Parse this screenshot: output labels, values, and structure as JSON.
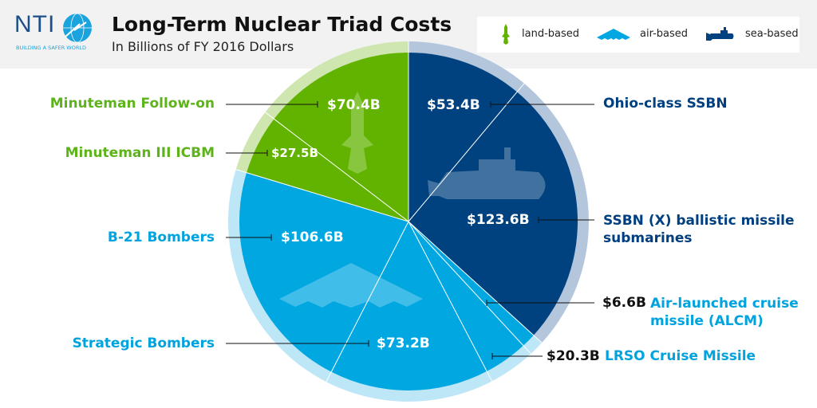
{
  "logo": {
    "text": "NTI",
    "tagline": "BUILDING A SAFER WORLD"
  },
  "header": {
    "title": "Long-Term Nuclear Triad Costs",
    "subtitle": "In Billions of FY 2016 Dollars"
  },
  "legend": [
    {
      "label": "land-based",
      "icon": "missile-icon",
      "color": "#62b300"
    },
    {
      "label": "air-based",
      "icon": "bomber-icon",
      "color": "#00a7e1"
    },
    {
      "label": "sea-based",
      "icon": "submarine-icon",
      "color": "#00427f"
    }
  ],
  "colors": {
    "land": "#62b300",
    "air": "#00a7e1",
    "sea": "#00427f",
    "land_ring": "#cfe6b0",
    "air_ring": "#bde6f7",
    "sea_ring": "#b3c6dc"
  },
  "chart_data": {
    "type": "pie",
    "title": "Long-Term Nuclear Triad Costs",
    "subtitle": "In Billions of FY 2016 Dollars",
    "start": "12 o'clock, clockwise",
    "slices": [
      {
        "label": "Ohio-class SSBN",
        "value": 53.4,
        "value_label": "$53.4B",
        "group": "sea"
      },
      {
        "label": "SSBN (X) ballistic missile submarines",
        "value": 123.6,
        "value_label": "$123.6B",
        "group": "sea"
      },
      {
        "label": "Air-launched cruise missile (ALCM)",
        "value": 6.6,
        "value_label": "$6.6B",
        "group": "air"
      },
      {
        "label": "LRSO Cruise Missile",
        "value": 20.3,
        "value_label": "$20.3B",
        "group": "air"
      },
      {
        "label": "Strategic Bombers",
        "value": 73.2,
        "value_label": "$73.2B",
        "group": "air"
      },
      {
        "label": "B-21 Bombers",
        "value": 106.6,
        "value_label": "$106.6B",
        "group": "air"
      },
      {
        "label": "Minuteman III ICBM",
        "value": 27.5,
        "value_label": "$27.5B",
        "group": "land"
      },
      {
        "label": "Minuteman Follow-on",
        "value": 70.4,
        "value_label": "$70.4B",
        "group": "land"
      }
    ],
    "legend_placement": "top-right"
  }
}
